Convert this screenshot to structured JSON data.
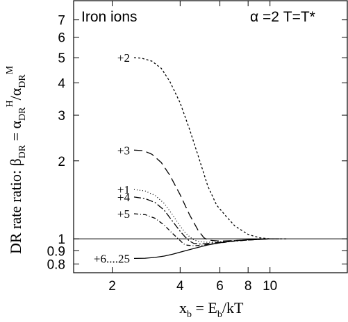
{
  "chart_data": {
    "type": "line",
    "title": "Iron  ions",
    "annotation_params": "α =2   T=T*",
    "xlabel": "x_b = E_b/kT",
    "ylabel": "DR rate ratio: β_DR = α_DR^H/α_DR^M",
    "xscale": "log",
    "yscale": "log",
    "xlim": [
      1.35,
      22
    ],
    "ylim": [
      0.74,
      8.3
    ],
    "x_ticks": [
      "2",
      "4",
      "6",
      "8",
      "10"
    ],
    "y_ticks": [
      "0.8",
      "0.9",
      "1",
      "2",
      "3",
      "4",
      "5",
      "6",
      "7"
    ],
    "reference_line_y": 1,
    "series": [
      {
        "name": "+2",
        "dash": "3,3",
        "width": 1.3,
        "x": [
          2.5,
          2.7,
          3.0,
          3.3,
          3.6,
          4.0,
          4.4,
          4.8,
          5.3,
          5.8,
          6.4,
          7.0,
          8.0,
          9.0,
          10.0,
          11.0,
          12.0
        ],
        "y": [
          5.0,
          4.98,
          4.85,
          4.55,
          4.05,
          3.35,
          2.65,
          2.1,
          1.6,
          1.35,
          1.22,
          1.12,
          1.04,
          1.01,
          1.0,
          1.0,
          1.0
        ]
      },
      {
        "name": "+3",
        "dash": "12,6",
        "width": 1.4,
        "x": [
          2.5,
          2.75,
          3.0,
          3.3,
          3.6,
          4.0,
          4.4,
          4.8,
          5.1,
          5.3,
          5.6,
          6.0,
          7.0,
          8.0,
          9.0,
          10.0
        ],
        "y": [
          2.2,
          2.19,
          2.12,
          1.97,
          1.76,
          1.48,
          1.24,
          1.08,
          1.01,
          0.99,
          0.985,
          0.98,
          0.985,
          0.99,
          0.995,
          1.0
        ]
      },
      {
        "name": "+1",
        "dash": "1,3",
        "width": 1.4,
        "x": [
          2.5,
          2.8,
          3.1,
          3.4,
          3.7,
          4.0,
          4.2,
          4.4,
          4.6,
          4.9,
          5.3,
          6.0,
          7.0,
          8.0,
          9.0,
          10.0
        ],
        "y": [
          1.55,
          1.53,
          1.47,
          1.37,
          1.24,
          1.12,
          1.06,
          1.02,
          0.99,
          0.975,
          0.97,
          0.975,
          0.985,
          0.99,
          0.995,
          1.0
        ]
      },
      {
        "name": "+4",
        "dash": "10,3,2,3",
        "width": 1.4,
        "x": [
          2.5,
          2.8,
          3.1,
          3.4,
          3.7,
          4.0,
          4.2,
          4.4,
          4.6,
          4.9,
          5.3,
          6.0,
          7.0,
          8.0,
          9.0,
          10.0
        ],
        "y": [
          1.45,
          1.43,
          1.38,
          1.29,
          1.17,
          1.07,
          1.02,
          0.98,
          0.96,
          0.955,
          0.96,
          0.97,
          0.98,
          0.99,
          0.995,
          1.0
        ]
      },
      {
        "name": "+5",
        "dash": "6,3,1,3",
        "width": 1.3,
        "x": [
          2.5,
          2.8,
          3.1,
          3.4,
          3.7,
          4.0,
          4.15,
          4.3,
          4.6,
          5.0,
          5.5,
          6.0,
          7.0,
          8.0,
          9.0,
          10.0
        ],
        "y": [
          1.25,
          1.24,
          1.2,
          1.13,
          1.05,
          0.985,
          0.955,
          0.945,
          0.94,
          0.945,
          0.955,
          0.965,
          0.98,
          0.99,
          0.995,
          1.0
        ]
      },
      {
        "name": "+6....25",
        "dash": "",
        "width": 2.4,
        "x": [
          2.5,
          2.8,
          3.1,
          3.4,
          3.7,
          4.0,
          4.4,
          4.8,
          5.3,
          6.0,
          7.0,
          8.0,
          9.0,
          10.0,
          11.0
        ],
        "y": [
          0.84,
          0.842,
          0.848,
          0.858,
          0.872,
          0.888,
          0.908,
          0.927,
          0.947,
          0.966,
          0.983,
          0.993,
          0.998,
          1.0,
          1.0
        ]
      }
    ]
  }
}
